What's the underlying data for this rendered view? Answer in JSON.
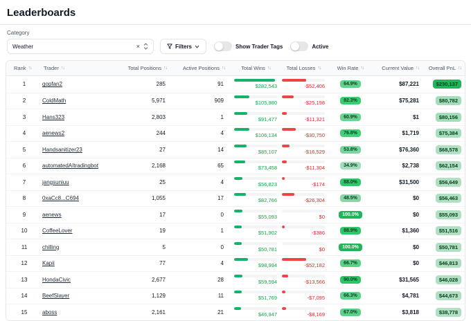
{
  "page": {
    "title": "Leaderboards"
  },
  "filters": {
    "category_label": "Category",
    "category_value": "Weather",
    "clear_icon": "×",
    "filters_label": "Filters",
    "toggles": [
      {
        "label": "Show Trader Tags",
        "on": false
      },
      {
        "label": "Active",
        "on": false
      }
    ]
  },
  "colors": {
    "win_green": "#17b26a",
    "loss_red": "#ef4444",
    "header_bg": "#f9fafb",
    "border": "#e5e7eb"
  },
  "table": {
    "columns": [
      "Rank",
      "Trader",
      "Total Positions",
      "Active Positions",
      "Total Wins",
      "Total Losses",
      "Win Rate",
      "Current Value",
      "Overall PnL"
    ],
    "rows": [
      {
        "rank": "1",
        "trader": "gopfan2",
        "total_positions": "285",
        "active_positions": "91",
        "total_wins": "$282,543",
        "win_bar_pct": 95,
        "total_losses": "-$52,406",
        "loss_bar_pct": 57,
        "win_rate": "64.9%",
        "win_rate_pct": 64.9,
        "current_value": "$87,221",
        "overall_pnl": "$230,137",
        "pnl_pct": 100
      },
      {
        "rank": "2",
        "trader": "ColdMath",
        "total_positions": "5,971",
        "active_positions": "909",
        "total_wins": "$105,980",
        "win_bar_pct": 36,
        "total_losses": "-$25,198",
        "loss_bar_pct": 27,
        "win_rate": "82.3%",
        "win_rate_pct": 82.3,
        "current_value": "$75,281",
        "overall_pnl": "$80,782",
        "pnl_pct": 35
      },
      {
        "rank": "3",
        "trader": "Hans323",
        "total_positions": "2,803",
        "active_positions": "1",
        "total_wins": "$91,477",
        "win_bar_pct": 31,
        "total_losses": "-$11,321",
        "loss_bar_pct": 12,
        "win_rate": "60.9%",
        "win_rate_pct": 60.9,
        "current_value": "$1",
        "overall_pnl": "$80,156",
        "pnl_pct": 35
      },
      {
        "rank": "4",
        "trader": "aenews2",
        "total_positions": "244",
        "active_positions": "4",
        "total_wins": "$106,134",
        "win_bar_pct": 36,
        "total_losses": "-$30,750",
        "loss_bar_pct": 33,
        "win_rate": "76.8%",
        "win_rate_pct": 76.8,
        "current_value": "$1,719",
        "overall_pnl": "$75,384",
        "pnl_pct": 33
      },
      {
        "rank": "5",
        "trader": "Handsanitizer23",
        "total_positions": "27",
        "active_positions": "14",
        "total_wins": "$85,107",
        "win_bar_pct": 29,
        "total_losses": "-$16,529",
        "loss_bar_pct": 18,
        "win_rate": "53.8%",
        "win_rate_pct": 53.8,
        "current_value": "$76,360",
        "overall_pnl": "$68,578",
        "pnl_pct": 30
      },
      {
        "rank": "6",
        "trader": "automatedAItradingbot",
        "total_positions": "2,168",
        "active_positions": "65",
        "total_wins": "$73,458",
        "win_bar_pct": 25,
        "total_losses": "-$11,304",
        "loss_bar_pct": 12,
        "win_rate": "34.9%",
        "win_rate_pct": 34.9,
        "current_value": "$2,738",
        "overall_pnl": "$62,154",
        "pnl_pct": 27
      },
      {
        "rank": "7",
        "trader": "jangsuniuu",
        "total_positions": "25",
        "active_positions": "4",
        "total_wins": "$56,823",
        "win_bar_pct": 19,
        "total_losses": "-$174",
        "loss_bar_pct": 1,
        "win_rate": "88.0%",
        "win_rate_pct": 88.0,
        "current_value": "$31,500",
        "overall_pnl": "$56,649",
        "pnl_pct": 25
      },
      {
        "rank": "8",
        "trader": "0xaCc8...C694",
        "total_positions": "1,055",
        "active_positions": "17",
        "total_wins": "$82,766",
        "win_bar_pct": 28,
        "total_losses": "-$26,304",
        "loss_bar_pct": 29,
        "win_rate": "48.5%",
        "win_rate_pct": 48.5,
        "current_value": "$0",
        "overall_pnl": "$56,463",
        "pnl_pct": 25
      },
      {
        "rank": "9",
        "trader": "aenews",
        "total_positions": "17",
        "active_positions": "0",
        "total_wins": "$55,093",
        "win_bar_pct": 19,
        "total_losses": "$0",
        "loss_bar_pct": 0,
        "win_rate": "100.0%",
        "win_rate_pct": 100,
        "current_value": "$0",
        "overall_pnl": "$55,093",
        "pnl_pct": 24
      },
      {
        "rank": "10",
        "trader": "CoffeeLover",
        "total_positions": "19",
        "active_positions": "1",
        "total_wins": "$51,902",
        "win_bar_pct": 18,
        "total_losses": "-$386",
        "loss_bar_pct": 1,
        "win_rate": "88.9%",
        "win_rate_pct": 88.9,
        "current_value": "$1,360",
        "overall_pnl": "$51,516",
        "pnl_pct": 22
      },
      {
        "rank": "11",
        "trader": "chilling",
        "total_positions": "5",
        "active_positions": "0",
        "total_wins": "$50,781",
        "win_bar_pct": 17,
        "total_losses": "$0",
        "loss_bar_pct": 0,
        "win_rate": "100.0%",
        "win_rate_pct": 100,
        "current_value": "$0",
        "overall_pnl": "$50,781",
        "pnl_pct": 22
      },
      {
        "rank": "12",
        "trader": "Kapii",
        "total_positions": "77",
        "active_positions": "4",
        "total_wins": "$98,994",
        "win_bar_pct": 33,
        "total_losses": "-$52,182",
        "loss_bar_pct": 57,
        "win_rate": "66.7%",
        "win_rate_pct": 66.7,
        "current_value": "$0",
        "overall_pnl": "$46,813",
        "pnl_pct": 20
      },
      {
        "rank": "13",
        "trader": "HondaCivic",
        "total_positions": "2,677",
        "active_positions": "28",
        "total_wins": "$59,594",
        "win_bar_pct": 20,
        "total_losses": "-$13,566",
        "loss_bar_pct": 15,
        "win_rate": "90.0%",
        "win_rate_pct": 90.0,
        "current_value": "$31,565",
        "overall_pnl": "$46,028",
        "pnl_pct": 20
      },
      {
        "rank": "14",
        "trader": "BeefSlayer",
        "total_positions": "1,129",
        "active_positions": "11",
        "total_wins": "$51,769",
        "win_bar_pct": 17,
        "total_losses": "-$7,095",
        "loss_bar_pct": 8,
        "win_rate": "66.3%",
        "win_rate_pct": 66.3,
        "current_value": "$4,781",
        "overall_pnl": "$44,673",
        "pnl_pct": 19
      },
      {
        "rank": "15",
        "trader": "aboss",
        "total_positions": "2,161",
        "active_positions": "21",
        "total_wins": "$46,947",
        "win_bar_pct": 16,
        "total_losses": "-$8,169",
        "loss_bar_pct": 9,
        "win_rate": "67.0%",
        "win_rate_pct": 67.0,
        "current_value": "$3,818",
        "overall_pnl": "$38,778",
        "pnl_pct": 17
      }
    ]
  }
}
